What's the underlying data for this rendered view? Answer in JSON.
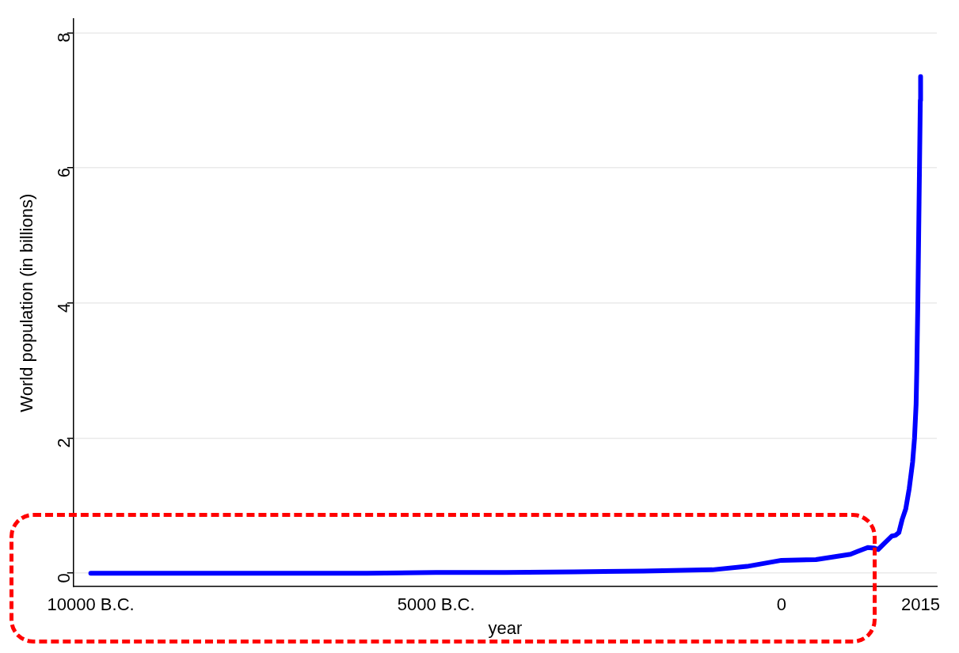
{
  "chart_data": {
    "type": "line",
    "xlabel": "year",
    "ylabel": "World population (in billions)",
    "x": [
      -10000,
      -8000,
      -6000,
      -5000,
      -4000,
      -3000,
      -2000,
      -1000,
      -500,
      0,
      500,
      1000,
      1100,
      1250,
      1350,
      1400,
      1500,
      1600,
      1650,
      1700,
      1750,
      1800,
      1850,
      1900,
      1927,
      1950,
      1960,
      1975,
      1987,
      1999,
      2011,
      2015
    ],
    "series": [
      {
        "color": "#0000ff",
        "values": [
          0,
          0,
          0,
          0.01,
          0.01,
          0.02,
          0.03,
          0.05,
          0.1,
          0.19,
          0.2,
          0.28,
          0.32,
          0.38,
          0.37,
          0.35,
          0.45,
          0.55,
          0.56,
          0.6,
          0.8,
          0.95,
          1.25,
          1.65,
          2.0,
          2.5,
          3.0,
          4.0,
          5.0,
          6.0,
          7.0,
          7.35
        ]
      }
    ],
    "xlim": [
      -10250,
      2250
    ],
    "ylim": [
      -0.2,
      8.2
    ],
    "xticks": [
      {
        "value": -10000,
        "label": "10000 B.C."
      },
      {
        "value": -5000,
        "label": "5000 B.C."
      },
      0,
      2015
    ],
    "yticks": [
      0,
      2,
      4,
      6,
      8
    ],
    "grid": "y",
    "legend": false,
    "marker": "none",
    "line_style": "solid"
  }
}
